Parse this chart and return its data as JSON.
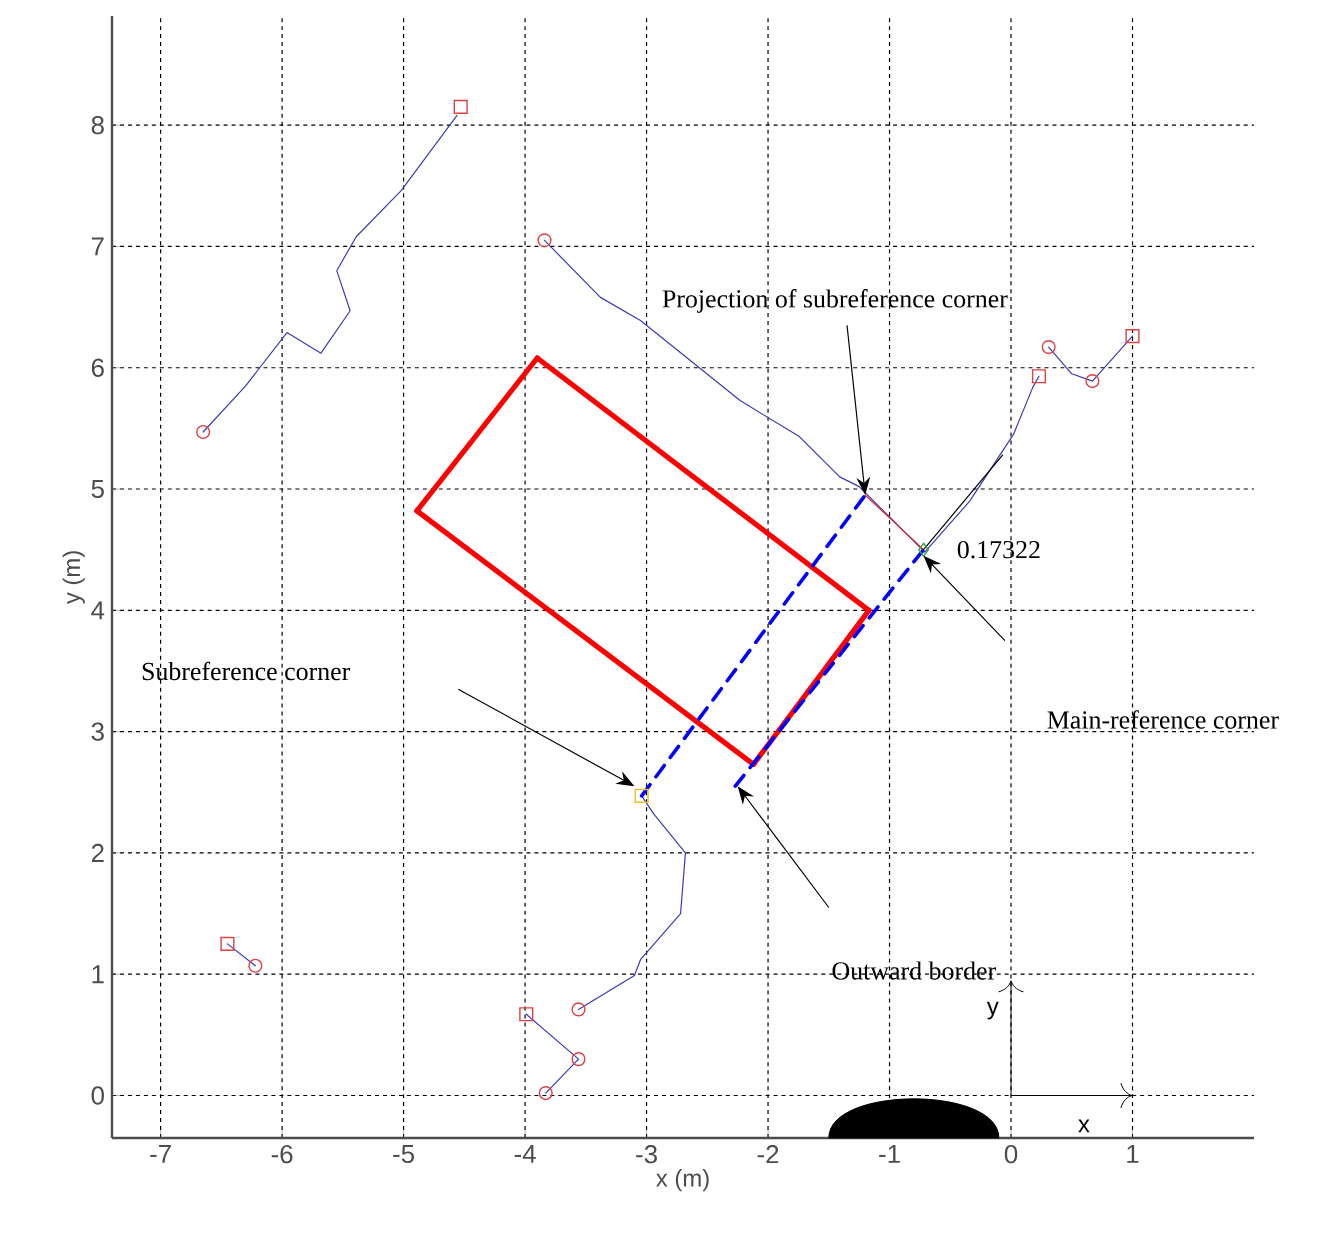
{
  "chart_data": {
    "type": "line",
    "xlabel": "x (m)",
    "ylabel": "y (m)",
    "xlim": [
      -7.4,
      2
    ],
    "ylim": [
      -0.35,
      8.9
    ],
    "xticks": [
      -7,
      -6,
      -5,
      -4,
      -3,
      -2,
      -1,
      0,
      1
    ],
    "yticks": [
      0,
      1,
      2,
      3,
      4,
      5,
      6,
      7,
      8
    ],
    "grid": true,
    "series": [
      {
        "color": "#3a3ab8",
        "x": [
          -6.65,
          -6.3,
          -5.96,
          -5.68,
          -5.44,
          -5.55,
          -5.39,
          -5.02,
          -4.56
        ],
        "values": [
          5.47,
          5.85,
          6.29,
          6.12,
          6.47,
          6.8,
          7.08,
          7.46,
          8.08
        ]
      },
      {
        "color": "#3a3ab8",
        "x": [
          -3.84,
          -3.38,
          -3.05,
          -2.23,
          -1.74,
          -1.41,
          -1.25,
          -0.71,
          -0.34,
          0.02,
          0.18,
          0.23
        ],
        "values": [
          7.05,
          6.58,
          6.39,
          5.73,
          5.43,
          5.1,
          5.02,
          4.48,
          4.9,
          5.45,
          5.84,
          5.93
        ]
      },
      {
        "color": "#3a3ab8",
        "x": [
          0.31,
          0.5,
          0.67,
          1.0
        ],
        "values": [
          6.17,
          5.95,
          5.89,
          6.26
        ]
      },
      {
        "color": "#3a3ab8",
        "x": [
          -3.99,
          -3.56,
          -3.83
        ],
        "values": [
          0.67,
          0.3,
          0.02
        ]
      },
      {
        "color": "#3a3ab8",
        "x": [
          -3.56,
          -3.1,
          -3.05,
          -2.72,
          -2.68,
          -2.94,
          -3.04
        ],
        "values": [
          0.71,
          0.99,
          1.12,
          1.5,
          2.0,
          2.32,
          2.47
        ]
      },
      {
        "color": "#3a3ab8",
        "x": [
          -6.45,
          -6.22
        ],
        "values": [
          1.25,
          1.07
        ]
      },
      {
        "color": "#ff0000",
        "x": [
          -4.89,
          -3.9
        ],
        "values": [
          4.82,
          6.08
        ]
      },
      {
        "color": "#ff0000",
        "x": [
          -3.9,
          -1.17
        ],
        "values": [
          6.08,
          4.0
        ]
      },
      {
        "color": "#ff0000",
        "x": [
          -2.12,
          -1.17
        ],
        "values": [
          2.73,
          4.0
        ]
      },
      {
        "color": "#ff0000",
        "x": [
          -4.89,
          -2.12
        ],
        "values": [
          4.82,
          2.73
        ]
      },
      {
        "color": "#0000ff",
        "line_style": "dashed",
        "x": [
          -3.04,
          -1.2
        ],
        "values": [
          2.47,
          4.95
        ]
      },
      {
        "color": "#0000ff",
        "line_style": "dashed",
        "x": [
          -2.27,
          -0.72
        ],
        "values": [
          2.55,
          4.5
        ]
      },
      {
        "color": "#e02020",
        "x": [
          -1.2,
          -0.72
        ],
        "values": [
          4.95,
          4.5
        ]
      },
      {
        "color": "#000000",
        "x": [
          -0.72,
          -0.07
        ],
        "values": [
          4.5,
          5.28
        ]
      },
      {
        "type": "scatter",
        "marker": "circle",
        "color": "#e04040",
        "x": [
          -6.65,
          -3.84,
          0.31,
          0.67,
          -3.83,
          -3.56,
          -3.56,
          -6.22
        ],
        "values": [
          5.47,
          7.05,
          6.17,
          5.89,
          0.02,
          0.3,
          0.71,
          1.07
        ]
      },
      {
        "type": "scatter",
        "marker": "square",
        "color": "#e04040",
        "x": [
          -4.53,
          0.23,
          1.0,
          -3.99,
          -6.45
        ],
        "values": [
          8.15,
          5.93,
          6.26,
          0.67,
          1.25
        ]
      },
      {
        "type": "scatter",
        "marker": "square",
        "color": "#e8c020",
        "x": [
          -3.04
        ],
        "values": [
          2.47
        ]
      },
      {
        "type": "scatter",
        "marker": "diamond",
        "color": "#40a040",
        "x": [
          -0.72
        ],
        "values": [
          4.5
        ]
      }
    ],
    "annotations": [
      {
        "text": "Projection of subreference corner",
        "x": -1.2,
        "y": 4.95
      },
      {
        "text": "0.17322",
        "x": -0.72,
        "y": 4.5
      },
      "Main-reference corner",
      "Subreference corner",
      "Outward border",
      "x",
      "y"
    ]
  }
}
